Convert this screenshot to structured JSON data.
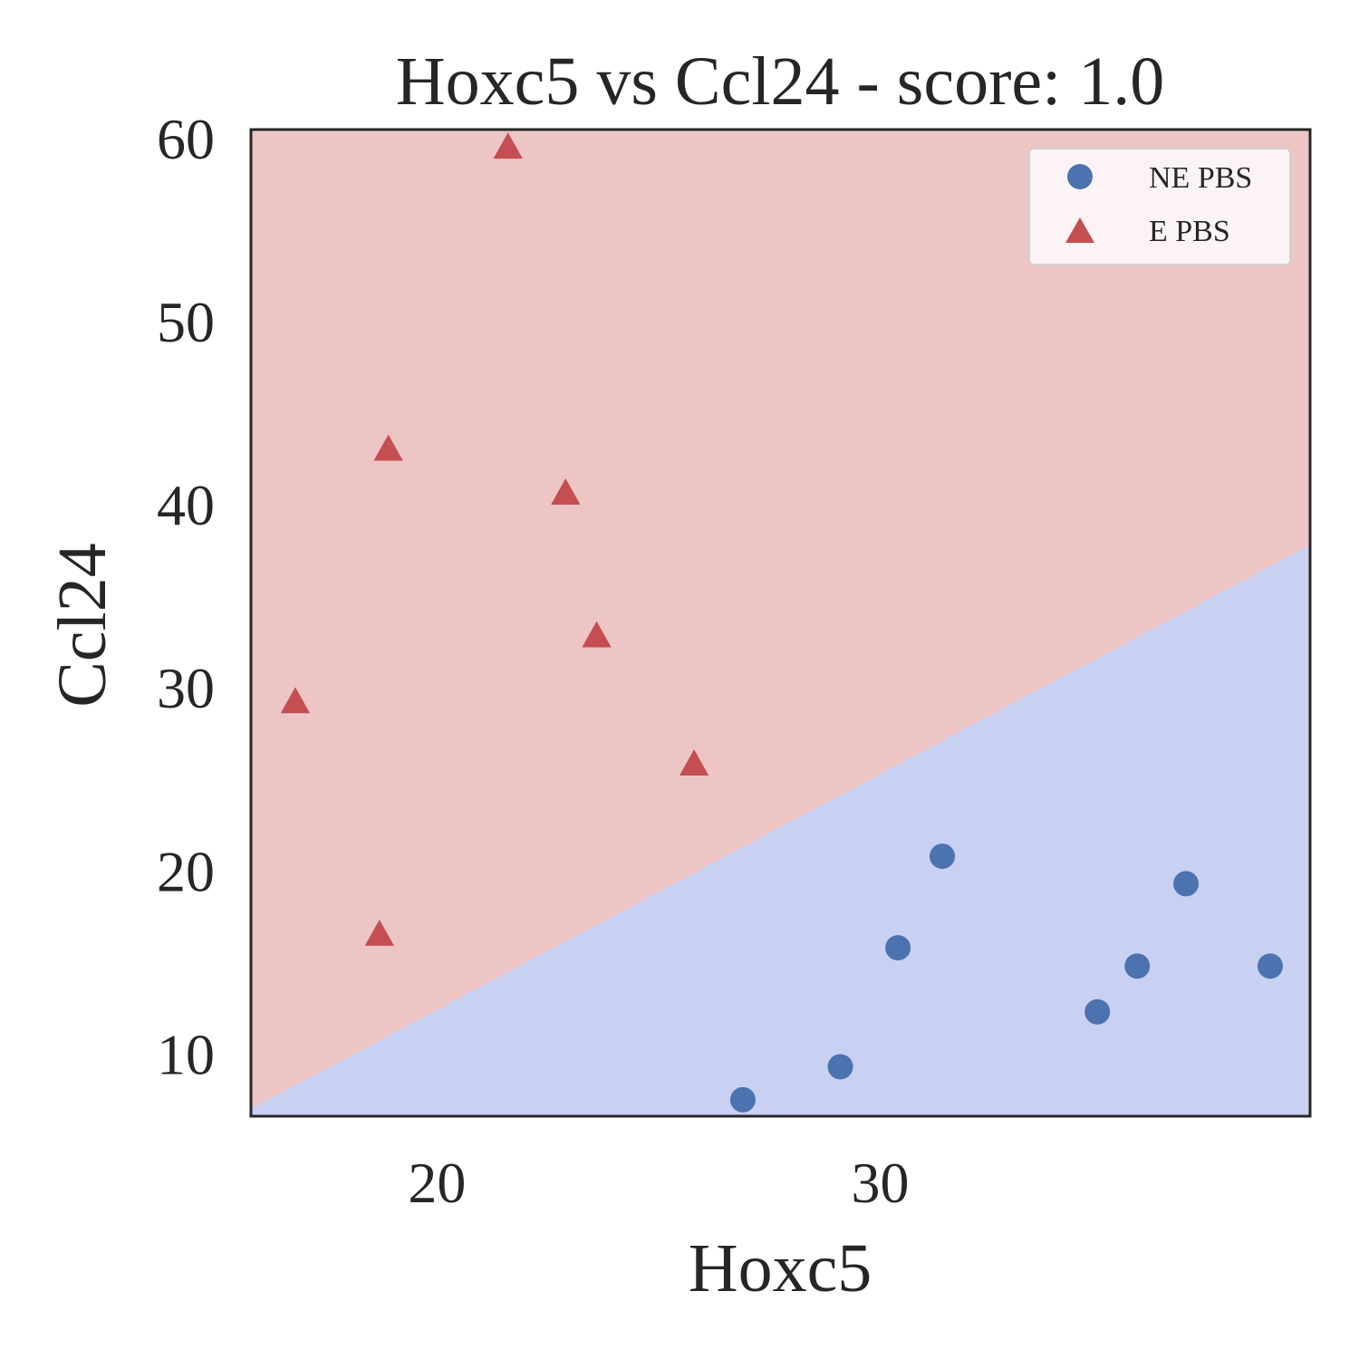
{
  "chart_data": {
    "type": "scatter",
    "title": "Hoxc5 vs Ccl24 - score: 1.0",
    "xlabel": "Hoxc5",
    "ylabel": "Ccl24",
    "xlim": [
      15.8,
      39.7
    ],
    "ylim": [
      6.6,
      60.5
    ],
    "xticks": [
      20,
      30
    ],
    "yticks": [
      10,
      20,
      30,
      40,
      50,
      60
    ],
    "grid": false,
    "legend_position": "top-right",
    "decision_boundary": {
      "points": [
        [
          15.8,
          7.0
        ],
        [
          39.7,
          37.8
        ]
      ],
      "region_above": "E PBS",
      "region_below": "NE PBS"
    },
    "series": [
      {
        "name": "NE PBS",
        "marker": "circle",
        "color": "#4C72B0",
        "region_color": "#C9D1F2",
        "points": [
          [
            26.9,
            7.5
          ],
          [
            29.1,
            9.3
          ],
          [
            30.4,
            15.8
          ],
          [
            31.4,
            20.8
          ],
          [
            34.9,
            12.3
          ],
          [
            35.8,
            14.8
          ],
          [
            36.9,
            19.3
          ],
          [
            38.8,
            14.8
          ]
        ]
      },
      {
        "name": "E PBS",
        "marker": "triangle",
        "color": "#C44E52",
        "region_color": "#EEC5C5",
        "points": [
          [
            16.8,
            29.2
          ],
          [
            18.7,
            16.5
          ],
          [
            18.9,
            43.0
          ],
          [
            21.6,
            59.5
          ],
          [
            22.9,
            40.6
          ],
          [
            23.6,
            32.8
          ],
          [
            25.8,
            25.8
          ]
        ]
      }
    ]
  }
}
